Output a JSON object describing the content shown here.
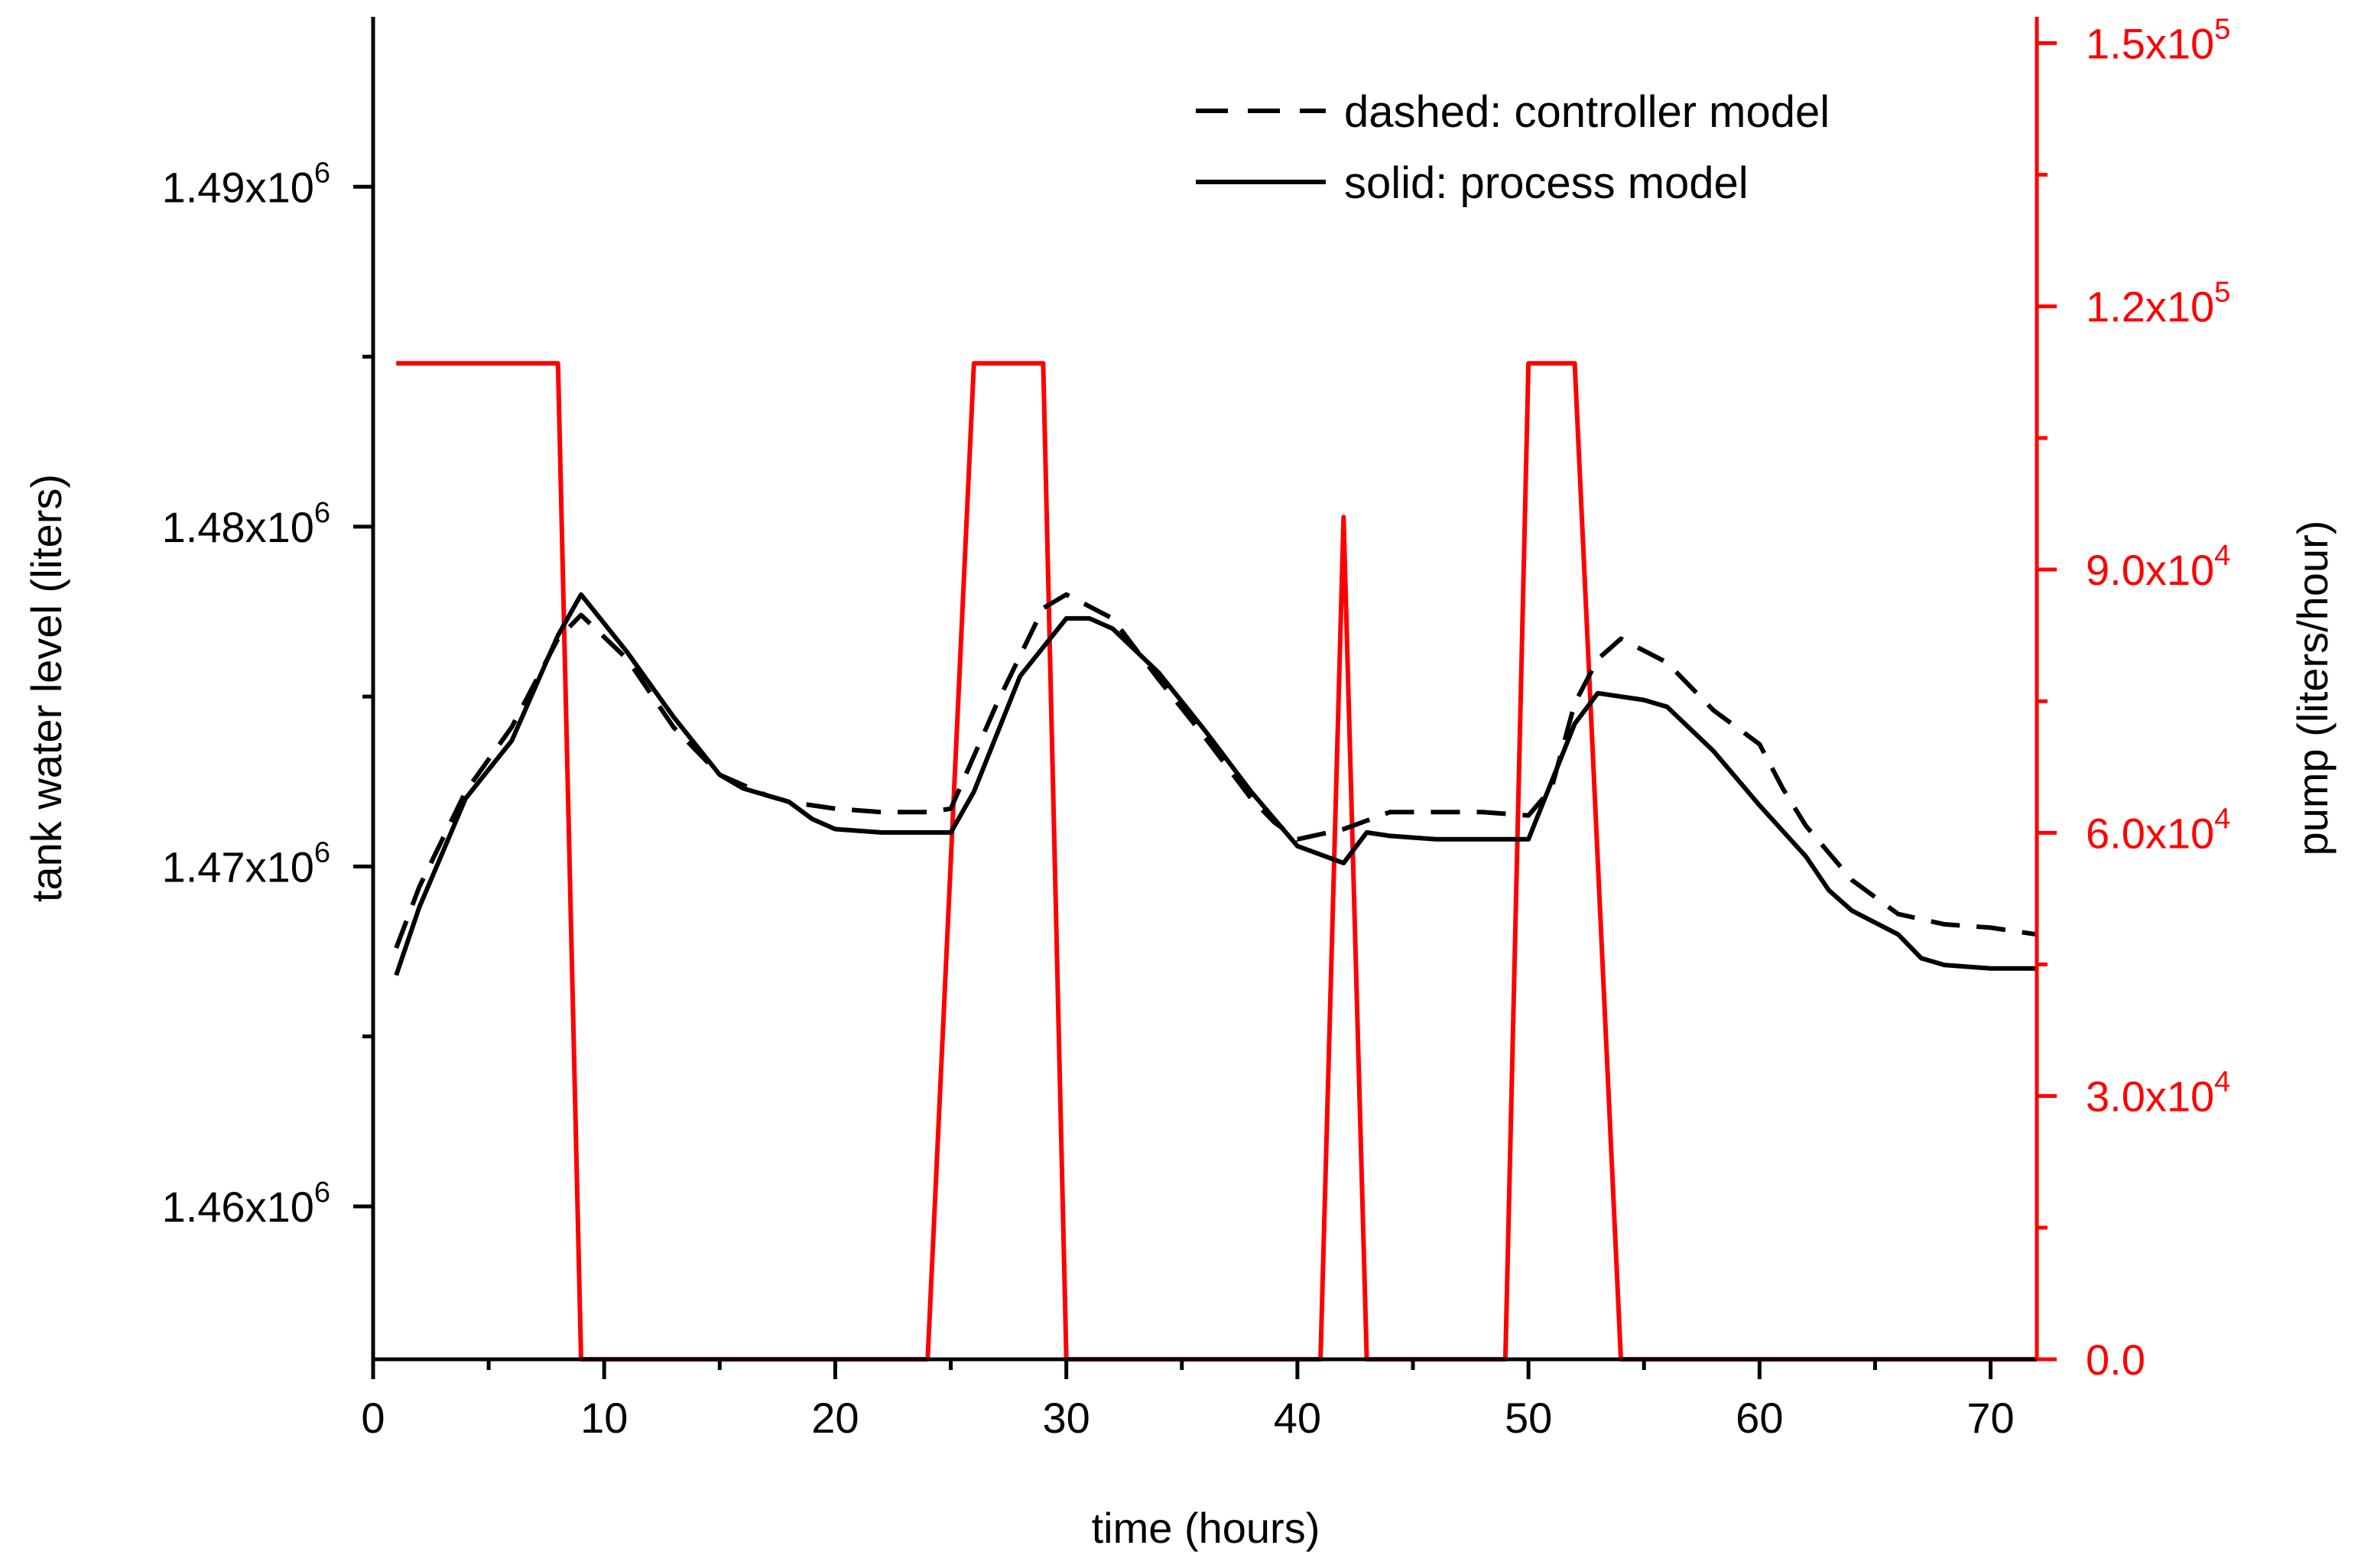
{
  "chart_data": {
    "type": "line",
    "title": "",
    "xlabel": "time (hours)",
    "ylabel_left": "tank water level (liters)",
    "ylabel_right": "pump (liters/hour)",
    "x_range": [
      0,
      72
    ],
    "x_ticks": [
      0,
      10,
      20,
      30,
      40,
      50,
      60,
      70
    ],
    "x_tick_labels": [
      "0",
      "10",
      "20",
      "30",
      "40",
      "50",
      "60",
      "70"
    ],
    "y_left_range": [
      1455500,
      1495000
    ],
    "y_left_ticks": [
      {
        "value": 1460000,
        "mantissa": "1.46x10",
        "exponent": "6"
      },
      {
        "value": 1470000,
        "mantissa": "1.47x10",
        "exponent": "6"
      },
      {
        "value": 1480000,
        "mantissa": "1.48x10",
        "exponent": "6"
      },
      {
        "value": 1490000,
        "mantissa": "1.49x10",
        "exponent": "6"
      }
    ],
    "y_right_range": [
      0,
      153000
    ],
    "y_right_ticks": [
      {
        "value": 0,
        "label": "0.0",
        "exponent": ""
      },
      {
        "value": 30000,
        "label": "3.0x10",
        "exponent": "4"
      },
      {
        "value": 60000,
        "label": "6.0x10",
        "exponent": "4"
      },
      {
        "value": 90000,
        "label": "9.0x10",
        "exponent": "4"
      },
      {
        "value": 120000,
        "label": "1.2x10",
        "exponent": "5"
      },
      {
        "value": 150000,
        "label": "1.5x10",
        "exponent": "5"
      }
    ],
    "legend": {
      "position": "top-right",
      "entries": [
        {
          "label": "dashed: controller model",
          "style": "dashed"
        },
        {
          "label": "solid: process model",
          "style": "solid"
        }
      ]
    },
    "series": [
      {
        "name": "controller model (tank level)",
        "axis": "left",
        "style": "dashed",
        "color": "#000000",
        "points": [
          [
            1,
            1467600
          ],
          [
            2,
            1469400
          ],
          [
            4,
            1472200
          ],
          [
            6,
            1474100
          ],
          [
            8,
            1476700
          ],
          [
            9,
            1477400
          ],
          [
            11,
            1476100
          ],
          [
            13,
            1474100
          ],
          [
            15,
            1472700
          ],
          [
            17,
            1472100
          ],
          [
            18,
            1471900
          ],
          [
            20,
            1471700
          ],
          [
            22,
            1471600
          ],
          [
            24,
            1471600
          ],
          [
            25,
            1471700
          ],
          [
            27,
            1474800
          ],
          [
            29,
            1477600
          ],
          [
            30,
            1478000
          ],
          [
            32,
            1477300
          ],
          [
            34,
            1475500
          ],
          [
            36,
            1473800
          ],
          [
            38,
            1472000
          ],
          [
            39,
            1471300
          ],
          [
            40,
            1470800
          ],
          [
            42,
            1471100
          ],
          [
            44,
            1471600
          ],
          [
            46,
            1471600
          ],
          [
            48,
            1471600
          ],
          [
            50,
            1471500
          ],
          [
            51,
            1472300
          ],
          [
            52,
            1474800
          ],
          [
            53,
            1476100
          ],
          [
            54,
            1476700
          ],
          [
            56,
            1476000
          ],
          [
            58,
            1474600
          ],
          [
            60,
            1473600
          ],
          [
            61,
            1472300
          ],
          [
            62,
            1471200
          ],
          [
            64,
            1469600
          ],
          [
            66,
            1468600
          ],
          [
            68,
            1468300
          ],
          [
            70,
            1468200
          ],
          [
            72,
            1468000
          ]
        ]
      },
      {
        "name": "process model (tank level)",
        "axis": "left",
        "style": "solid",
        "color": "#000000",
        "points": [
          [
            1,
            1466800
          ],
          [
            2,
            1468800
          ],
          [
            4,
            1472000
          ],
          [
            6,
            1473700
          ],
          [
            8,
            1476800
          ],
          [
            9,
            1478000
          ],
          [
            11,
            1476300
          ],
          [
            13,
            1474400
          ],
          [
            15,
            1472700
          ],
          [
            16,
            1472300
          ],
          [
            18,
            1471900
          ],
          [
            19,
            1471400
          ],
          [
            20,
            1471100
          ],
          [
            22,
            1471000
          ],
          [
            24,
            1471000
          ],
          [
            25,
            1471000
          ],
          [
            26,
            1472200
          ],
          [
            28,
            1475600
          ],
          [
            30,
            1477300
          ],
          [
            31,
            1477300
          ],
          [
            32,
            1477000
          ],
          [
            34,
            1475700
          ],
          [
            36,
            1474000
          ],
          [
            38,
            1472200
          ],
          [
            40,
            1470600
          ],
          [
            42,
            1470100
          ],
          [
            43,
            1471000
          ],
          [
            44,
            1470900
          ],
          [
            46,
            1470800
          ],
          [
            48,
            1470800
          ],
          [
            50,
            1470800
          ],
          [
            52,
            1474200
          ],
          [
            53,
            1475100
          ],
          [
            55,
            1474900
          ],
          [
            56,
            1474700
          ],
          [
            58,
            1473400
          ],
          [
            60,
            1471800
          ],
          [
            62,
            1470300
          ],
          [
            63,
            1469300
          ],
          [
            64,
            1468700
          ],
          [
            66,
            1468000
          ],
          [
            67,
            1467300
          ],
          [
            68,
            1467100
          ],
          [
            70,
            1467000
          ],
          [
            72,
            1467000
          ]
        ]
      },
      {
        "name": "pump",
        "axis": "right",
        "style": "solid",
        "color": "#ff0000",
        "points": [
          [
            1,
            113500
          ],
          [
            8,
            113500
          ],
          [
            9,
            0
          ],
          [
            24,
            0
          ],
          [
            26,
            113500
          ],
          [
            29,
            113500
          ],
          [
            30,
            0
          ],
          [
            41,
            0
          ],
          [
            42,
            96000
          ],
          [
            43,
            0
          ],
          [
            49,
            0
          ],
          [
            50,
            113500
          ],
          [
            52,
            113500
          ],
          [
            54,
            0
          ],
          [
            72,
            0
          ]
        ]
      }
    ]
  }
}
